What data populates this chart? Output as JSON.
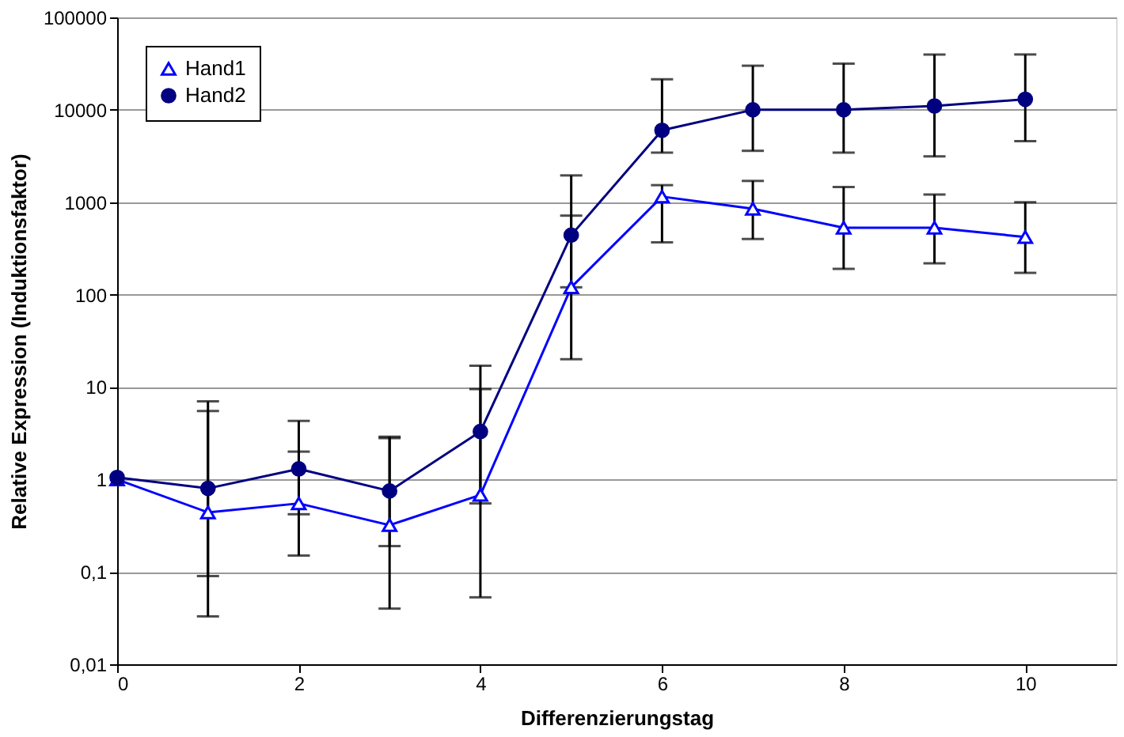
{
  "chart_data": {
    "type": "line",
    "xlabel": "Differenzierungstag",
    "ylabel": "Relative Expression (Induktionsfaktor)",
    "x": [
      0,
      1,
      2,
      3,
      4,
      5,
      6,
      7,
      8,
      9,
      10
    ],
    "series": [
      {
        "name": "Hand1",
        "color": "#0000ff",
        "marker": "triangle",
        "values": [
          1,
          0.44,
          0.55,
          0.32,
          0.68,
          120,
          1150,
          850,
          530,
          530,
          420
        ],
        "errors": [
          null,
          [
            0.033,
            5.5
          ],
          [
            0.15,
            2.0
          ],
          [
            0.04,
            2.8
          ],
          [
            0.053,
            9.5
          ],
          [
            20,
            716
          ],
          [
            368,
            1530
          ],
          [
            400,
            1700
          ],
          [
            190,
            1460
          ],
          [
            218,
            1210
          ],
          [
            172,
            1000
          ]
        ]
      },
      {
        "name": "Hand2",
        "color": "#000080",
        "marker": "circle",
        "values": [
          1.05,
          0.8,
          1.3,
          0.75,
          3.3,
          440,
          6000,
          10000,
          10000,
          11000,
          13000
        ],
        "errors": [
          null,
          [
            0.09,
            7
          ],
          [
            0.42,
            4.3
          ],
          [
            0.19,
            2.9
          ],
          [
            0.55,
            17
          ],
          [
            120,
            1950
          ],
          [
            3440,
            21400
          ],
          [
            3600,
            30000
          ],
          [
            3440,
            31600
          ],
          [
            3130,
            39700
          ],
          [
            4580,
            39700
          ]
        ]
      }
    ],
    "log": true,
    "xlim": [
      0,
      11
    ],
    "xticks": [
      0,
      2,
      4,
      6,
      8,
      10
    ],
    "ylim": [
      0.01,
      100000
    ],
    "yticks": [
      {
        "value": 0.01,
        "label": "0,01"
      },
      {
        "value": 0.1,
        "label": "0,1"
      },
      1,
      10,
      100,
      1000,
      10000,
      100000
    ],
    "grid": "y",
    "legend": "top left",
    "line_style": "solid"
  }
}
